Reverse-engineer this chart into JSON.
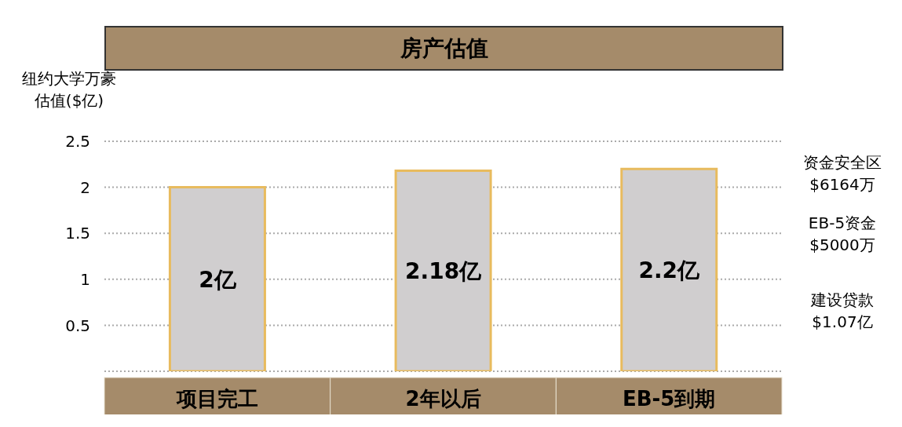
{
  "chart_data": {
    "type": "bar",
    "title": "房产估值",
    "ylabel": "纽约大学万豪估值($亿)",
    "categories": [
      "项目完工",
      "2年以后",
      "EB-5到期"
    ],
    "values": [
      2,
      2.18,
      2.2
    ],
    "color": "#d0cecf",
    "value_labels": [
      "2亿",
      "2.18亿",
      "2.2亿"
    ],
    "ylim": [
      0,
      2.5
    ],
    "yticks": [
      0.5,
      1,
      1.5,
      2,
      2.5
    ],
    "grid": "y",
    "legend": false,
    "annotations": [
      "资金安全区\n$6164万",
      "EB-5资金\n$5000万",
      "建设贷款\n$1.07亿"
    ]
  }
}
